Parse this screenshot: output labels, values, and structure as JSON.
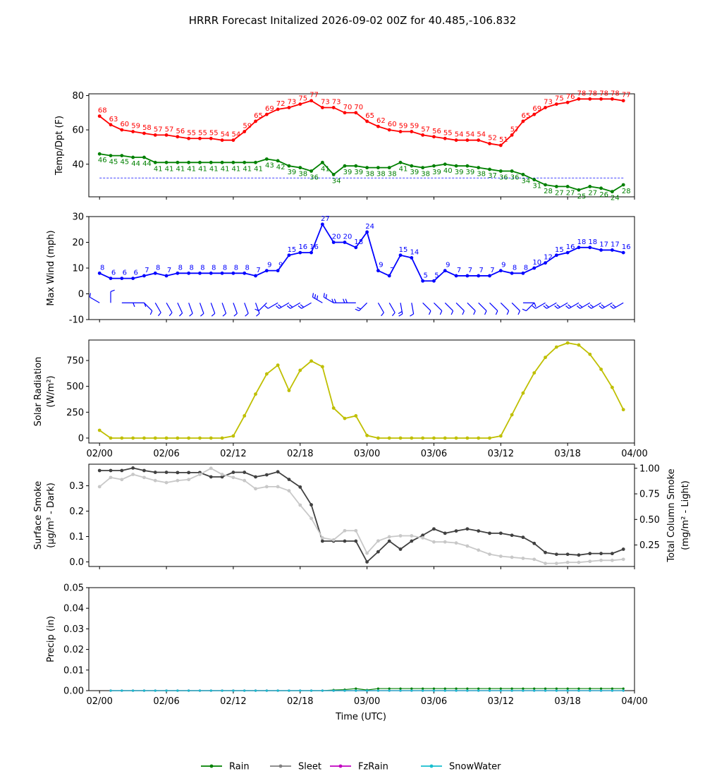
{
  "title": "HRRR Forecast Initalized 2026-09-02 00Z for 40.485,-106.832",
  "x_ticks": [
    "02/00",
    "02/06",
    "02/12",
    "02/18",
    "03/00",
    "03/06",
    "03/12",
    "03/18",
    "04/00"
  ],
  "x_label": "Time (UTC)",
  "chart_data": [
    {
      "type": "line",
      "name": "temp-dewpoint",
      "ylabel": "Temp/Dpt (F)",
      "ylim": [
        21,
        81
      ],
      "yticks": [
        40,
        60,
        80
      ],
      "freezing_line": 32,
      "series": [
        {
          "name": "Temp",
          "color": "#ff0000",
          "labeled": true,
          "values": [
            68,
            63,
            60,
            59,
            58,
            57,
            57,
            56,
            55,
            55,
            55,
            54,
            54,
            59,
            65,
            69,
            72,
            73,
            75,
            77,
            73,
            73,
            70,
            70,
            65,
            62,
            60,
            59,
            59,
            57,
            56,
            55,
            54,
            54,
            54,
            52,
            51,
            57,
            65,
            69,
            73,
            75,
            76,
            78,
            78,
            78,
            78,
            77
          ]
        },
        {
          "name": "Dewpoint",
          "color": "#008000",
          "labeled": true,
          "values": [
            46,
            45,
            45,
            44,
            44,
            41,
            41,
            41,
            41,
            41,
            41,
            41,
            41,
            41,
            41,
            43,
            42,
            39,
            38,
            36,
            41,
            34,
            39,
            39,
            38,
            38,
            38,
            41,
            39,
            38,
            39,
            40,
            39,
            39,
            38,
            37,
            36,
            36,
            34,
            31,
            28,
            27,
            27,
            25,
            27,
            26,
            24,
            28
          ]
        }
      ]
    },
    {
      "type": "line",
      "name": "max-wind",
      "ylabel": "Max Wind (mph)",
      "ylim": [
        -10,
        30
      ],
      "yticks": [
        -10,
        0,
        10,
        20,
        30
      ],
      "series": [
        {
          "name": "Max Wind",
          "color": "#0000ff",
          "labeled": true,
          "values": [
            8,
            6,
            6,
            6,
            7,
            8,
            7,
            8,
            8,
            8,
            8,
            8,
            8,
            8,
            7,
            9,
            9,
            15,
            16,
            16,
            27,
            20,
            20,
            18,
            24,
            9,
            7,
            15,
            14,
            5,
            5,
            9,
            7,
            7,
            7,
            7,
            9,
            8,
            8,
            10,
            12,
            15,
            16,
            18,
            18,
            17,
            17,
            16
          ]
        }
      ],
      "wind_dir_deg": [
        300,
        360,
        90,
        90,
        135,
        150,
        150,
        155,
        160,
        160,
        160,
        160,
        160,
        160,
        160,
        225,
        240,
        240,
        240,
        240,
        300,
        300,
        270,
        270,
        225,
        150,
        150,
        170,
        170,
        135,
        135,
        135,
        135,
        135,
        135,
        135,
        135,
        135,
        90,
        225,
        240,
        240,
        240,
        240,
        240,
        240,
        240,
        240
      ]
    },
    {
      "type": "line",
      "name": "solar-radiation",
      "ylabel": "Solar Radiation",
      "ylabel_unit": "(W/m²)",
      "ylim": [
        -48,
        948
      ],
      "yticks": [
        0,
        250,
        500,
        750
      ],
      "series": [
        {
          "name": "Solar Radiation",
          "color": "#bfbf00",
          "labeled": false,
          "values": [
            75,
            0,
            0,
            0,
            0,
            0,
            0,
            0,
            0,
            0,
            0,
            0,
            20,
            215,
            425,
            620,
            705,
            460,
            655,
            745,
            690,
            290,
            190,
            215,
            25,
            0,
            0,
            0,
            0,
            0,
            0,
            0,
            0,
            0,
            0,
            0,
            20,
            225,
            435,
            630,
            780,
            880,
            920,
            900,
            810,
            665,
            490,
            275
          ]
        }
      ]
    },
    {
      "type": "line",
      "name": "smoke",
      "ylabel": "Surface Smoke",
      "ylabel_unit": "(μg/m³ - Dark)",
      "ylabel_right": "Total Column Smoke",
      "ylabel_right_unit": "(mg/m² - Light)",
      "ylim": [
        -0.018,
        0.385
      ],
      "yticks": [
        0.0,
        0.1,
        0.2,
        0.3
      ],
      "ylim_right": [
        0.04,
        1.04
      ],
      "yticks_right": [
        0.25,
        0.5,
        0.75,
        1.0
      ],
      "series": [
        {
          "name": "Surface Smoke",
          "color": "#404040",
          "axis": "left",
          "labeled": false,
          "values": [
            0.36,
            0.36,
            0.36,
            0.37,
            0.36,
            0.353,
            0.353,
            0.352,
            0.352,
            0.352,
            0.335,
            0.335,
            0.353,
            0.353,
            0.335,
            0.343,
            0.355,
            0.325,
            0.295,
            0.225,
            0.082,
            0.082,
            0.082,
            0.082,
            0.0,
            0.04,
            0.082,
            0.05,
            0.082,
            0.105,
            0.13,
            0.113,
            0.122,
            0.13,
            0.122,
            0.113,
            0.113,
            0.105,
            0.097,
            0.073,
            0.037,
            0.03,
            0.03,
            0.027,
            0.033,
            0.033,
            0.033,
            0.05
          ]
        },
        {
          "name": "Total Column Smoke",
          "color": "#c8c8c8",
          "axis": "right",
          "labeled": false,
          "values": [
            0.82,
            0.91,
            0.89,
            0.94,
            0.91,
            0.88,
            0.86,
            0.88,
            0.89,
            0.94,
            1.0,
            0.94,
            0.91,
            0.88,
            0.8,
            0.82,
            0.82,
            0.78,
            0.64,
            0.51,
            0.32,
            0.3,
            0.39,
            0.39,
            0.17,
            0.29,
            0.33,
            0.34,
            0.34,
            0.32,
            0.28,
            0.28,
            0.27,
            0.24,
            0.2,
            0.16,
            0.14,
            0.13,
            0.12,
            0.11,
            0.07,
            0.07,
            0.08,
            0.08,
            0.09,
            0.1,
            0.1,
            0.11
          ]
        }
      ]
    },
    {
      "type": "line",
      "name": "precip",
      "ylabel": "Precip (in)",
      "ylim": [
        0,
        0.05
      ],
      "yticks": [
        0.0,
        0.01,
        0.02,
        0.03,
        0.04,
        0.05
      ],
      "x_start_index": 1,
      "series": [
        {
          "name": "Rain",
          "color": "#008000",
          "values": [
            0,
            0,
            0,
            0,
            0,
            0,
            0,
            0,
            0,
            0,
            0,
            0,
            0,
            0,
            0,
            0,
            0,
            0,
            0,
            0,
            0.0003,
            0.0005,
            0.001,
            0.0003,
            0.001,
            0.001,
            0.001,
            0.001,
            0.001,
            0.001,
            0.001,
            0.001,
            0.001,
            0.001,
            0.001,
            0.001,
            0.001,
            0.001,
            0.001,
            0.001,
            0.001,
            0.001,
            0.001,
            0.001,
            0.001,
            0.001,
            0.001
          ]
        },
        {
          "name": "Sleet",
          "color": "#808080",
          "values": [
            0,
            0,
            0,
            0,
            0,
            0,
            0,
            0,
            0,
            0,
            0,
            0,
            0,
            0,
            0,
            0,
            0,
            0,
            0,
            0,
            0,
            0,
            0,
            0,
            0,
            0,
            0,
            0,
            0,
            0,
            0,
            0,
            0,
            0,
            0,
            0,
            0,
            0,
            0,
            0,
            0,
            0,
            0,
            0,
            0,
            0,
            0
          ]
        },
        {
          "name": "FzRain",
          "color": "#c000c0",
          "values": [
            0,
            0,
            0,
            0,
            0,
            0,
            0,
            0,
            0,
            0,
            0,
            0,
            0,
            0,
            0,
            0,
            0,
            0,
            0,
            0,
            0,
            0,
            0,
            0,
            0,
            0,
            0,
            0,
            0,
            0,
            0,
            0,
            0,
            0,
            0,
            0,
            0,
            0,
            0,
            0,
            0,
            0,
            0,
            0,
            0,
            0,
            0
          ]
        },
        {
          "name": "SnowWater",
          "color": "#17becf",
          "values": [
            0,
            0,
            0,
            0,
            0,
            0,
            0,
            0,
            0,
            0,
            0,
            0,
            0,
            0,
            0,
            0,
            0,
            0,
            0,
            0,
            0,
            0,
            0,
            0,
            0,
            0,
            0,
            0,
            0,
            0,
            0,
            0,
            0,
            0,
            0,
            0,
            0,
            0,
            0,
            0,
            0,
            0,
            0,
            0,
            0,
            0,
            0
          ]
        }
      ]
    }
  ],
  "legend": [
    {
      "label": "Rain",
      "color": "#008000"
    },
    {
      "label": "Sleet",
      "color": "#808080"
    },
    {
      "label": "FzRain",
      "color": "#c000c0"
    },
    {
      "label": "SnowWater",
      "color": "#17becf"
    }
  ]
}
